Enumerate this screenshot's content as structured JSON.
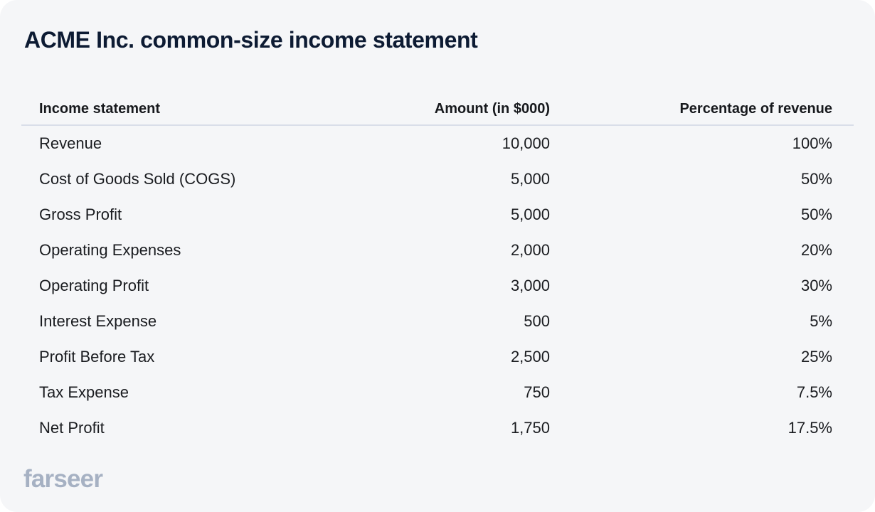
{
  "title": "ACME Inc. common-size income statement",
  "table": {
    "headers": [
      "Income statement",
      "Amount (in $000)",
      "Percentage of revenue"
    ],
    "rows": [
      {
        "item": "Revenue",
        "amount": "10,000",
        "percent": "100%"
      },
      {
        "item": "Cost of Goods Sold (COGS)",
        "amount": "5,000",
        "percent": "50%"
      },
      {
        "item": "Gross Profit",
        "amount": "5,000",
        "percent": "50%"
      },
      {
        "item": "Operating Expenses",
        "amount": "2,000",
        "percent": "20%"
      },
      {
        "item": "Operating Profit",
        "amount": "3,000",
        "percent": "30%"
      },
      {
        "item": "Interest Expense",
        "amount": "500",
        "percent": "5%"
      },
      {
        "item": "Profit Before Tax",
        "amount": "2,500",
        "percent": "25%"
      },
      {
        "item": "Tax Expense",
        "amount": "750",
        "percent": "7.5%"
      },
      {
        "item": "Net Profit",
        "amount": "1,750",
        "percent": "17.5%"
      }
    ]
  },
  "footer": {
    "logo_text": "farseer"
  },
  "colors": {
    "card_bg": "#f5f6f8",
    "title_text": "#0d1b33",
    "header_text": "#17191d",
    "body_text": "#1a1c20",
    "divider": "#d9dee9",
    "logo": "#a6b1c3"
  },
  "chart_data": {
    "type": "table",
    "title": "ACME Inc. common-size income statement",
    "columns": [
      "Income statement",
      "Amount (in $000)",
      "Percentage of revenue"
    ],
    "rows": [
      [
        "Revenue",
        10000,
        "100%"
      ],
      [
        "Cost of Goods Sold (COGS)",
        5000,
        "50%"
      ],
      [
        "Gross Profit",
        5000,
        "50%"
      ],
      [
        "Operating Expenses",
        2000,
        "20%"
      ],
      [
        "Operating Profit",
        3000,
        "30%"
      ],
      [
        "Interest Expense",
        500,
        "5%"
      ],
      [
        "Profit Before Tax",
        2500,
        "25%"
      ],
      [
        "Tax Expense",
        750,
        "7.5%"
      ],
      [
        "Net Profit",
        1750,
        "17.5%"
      ]
    ],
    "layout_hints": {
      "amount_column_align": "right",
      "percent_column_align": "right",
      "header_divider_only": true,
      "grid": false
    }
  }
}
